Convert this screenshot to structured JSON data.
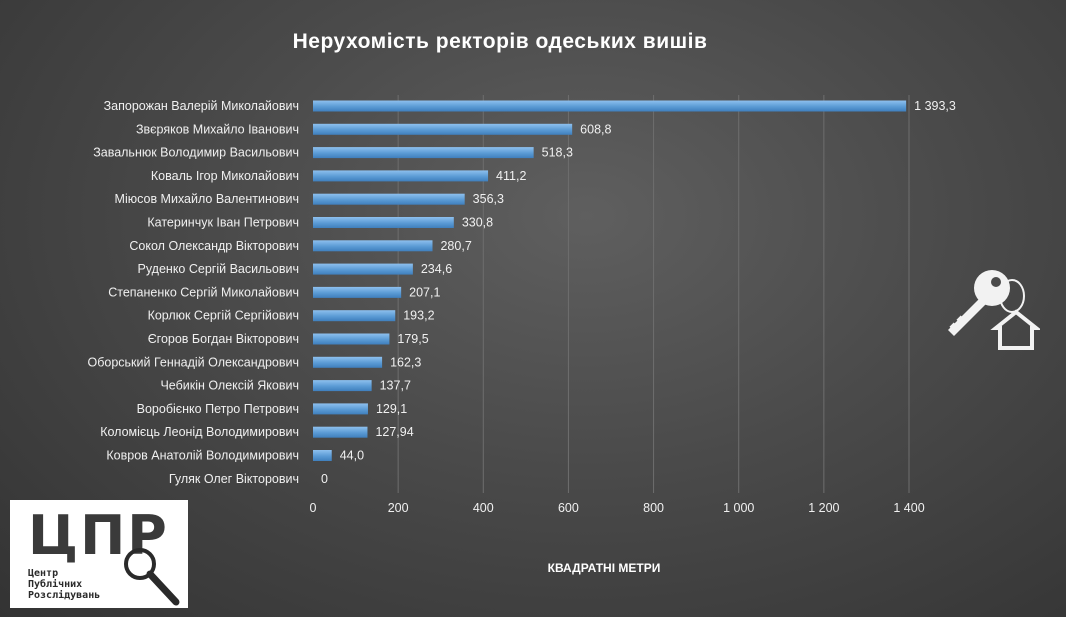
{
  "chart_data": {
    "type": "bar",
    "orientation": "horizontal",
    "title": "Нерухомість ректорів одеських вишів",
    "xlabel": "КВАДРАТНІ МЕТРИ",
    "ylabel": "",
    "categories": [
      "Запорожан Валерій Миколайович",
      "Звєряков Михайло Іванович",
      "Завальнюк Володимир Васильович",
      "Коваль Ігор Миколайович",
      "Міюсов Михайло Валентинович",
      "Катеринчук Іван Петрович",
      "Сокол Олександр Вікторович",
      "Руденко Сергій Васильович",
      "Степаненко Сергій Миколайович",
      "Корлюк Сергій Сергійович",
      "Єгоров Богдан Вікторович",
      "Оборський Геннадій Олександрович",
      "Чебикін Олексій Якович",
      "Воробієнко Петро Петрович",
      "Коломієць Леонід Володимирович",
      "Ковров Анатолій Володимирович",
      "Гуляк Олег Вікторович"
    ],
    "values": [
      1393.3,
      608.8,
      518.3,
      411.2,
      356.3,
      330.8,
      280.7,
      234.6,
      207.1,
      193.2,
      179.5,
      162.3,
      137.7,
      129.1,
      127.94,
      44.0,
      0
    ],
    "value_labels": [
      "1 393,3",
      "608,8",
      "518,3",
      "411,2",
      "356,3",
      "330,8",
      "280,7",
      "234,6",
      "207,1",
      "193,2",
      "179,5",
      "162,3",
      "137,7",
      "129,1",
      "127,94",
      "44,0",
      "0"
    ],
    "xlim": [
      0,
      1400
    ],
    "x_ticks": [
      0,
      200,
      400,
      600,
      800,
      1000,
      1200,
      1400
    ],
    "x_tick_labels": [
      "0",
      "200",
      "400",
      "600",
      "800",
      "1 000",
      "1 200",
      "1 400"
    ],
    "grid": "vertical",
    "bar_color": "#5b9bd5"
  },
  "logo": {
    "letters": "ЦПР",
    "line1": "Центр",
    "line2": "Публічних",
    "line3": "Розслідувань"
  },
  "icons": {
    "logo_magnifier": "magnifier-icon",
    "decoration": "keys-house-icon"
  }
}
